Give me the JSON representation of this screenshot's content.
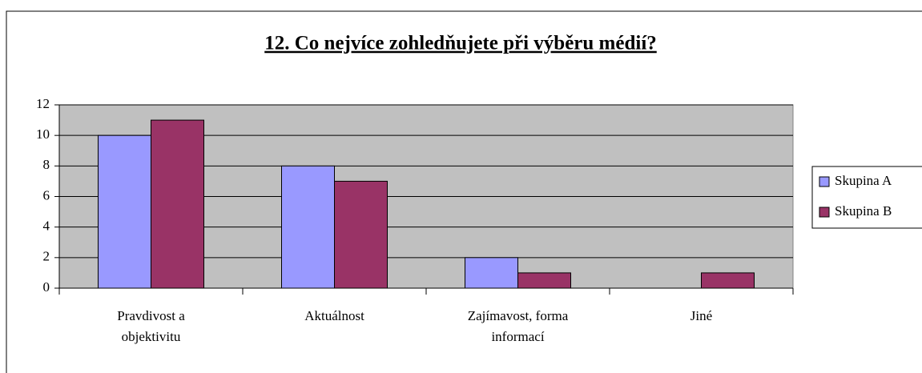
{
  "chart_data": {
    "type": "bar",
    "title": "12. Co nejvíce zohledňujete při výběru médií?",
    "categories": [
      "Pravdivost a objektivitu",
      "Aktuálnost",
      "Zajímavost, forma informací",
      "Jiné"
    ],
    "series": [
      {
        "name": "Skupina A",
        "color": "#9999ff",
        "values": [
          10,
          8,
          2,
          0
        ]
      },
      {
        "name": "Skupina B",
        "color": "#993366",
        "values": [
          11,
          7,
          1,
          1
        ]
      }
    ],
    "ylim": [
      0,
      12
    ],
    "yticks": [
      0,
      2,
      4,
      6,
      8,
      10,
      12
    ],
    "grid": true,
    "legend": "right"
  }
}
